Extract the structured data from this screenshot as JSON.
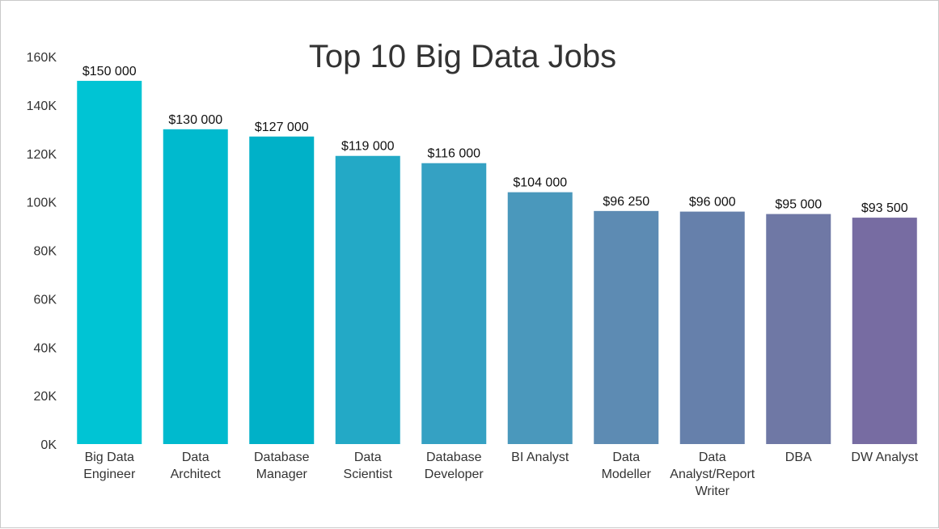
{
  "chart_data": {
    "type": "bar",
    "title": "Top 10 Big Data Jobs",
    "xlabel": "",
    "ylabel": "",
    "ylim": [
      0,
      160000
    ],
    "grid": false,
    "legend": "none",
    "yticks": [
      0,
      20000,
      40000,
      60000,
      80000,
      100000,
      120000,
      140000,
      160000
    ],
    "ytick_labels": [
      "0K",
      "20K",
      "40K",
      "60K",
      "80K",
      "100K",
      "120K",
      "140K",
      "160K"
    ],
    "categories": [
      [
        "Big Data",
        "Engineer"
      ],
      [
        "Data",
        "Architect"
      ],
      [
        "Database",
        "Manager"
      ],
      [
        "Data",
        "Scientist"
      ],
      [
        "Database",
        "Developer"
      ],
      [
        "BI Analyst"
      ],
      [
        "Data",
        "Modeller"
      ],
      [
        "Data",
        "Analyst/Report",
        "Writer"
      ],
      [
        "DBA"
      ],
      [
        "DW Analyst"
      ]
    ],
    "values": [
      150000,
      130000,
      127000,
      119000,
      116000,
      104000,
      96250,
      96000,
      95000,
      93500
    ],
    "value_labels": [
      "$150 000",
      "$130 000",
      "$127 000",
      "$119 000",
      "$116 000",
      "$104 000",
      "$96 250",
      "$96 000",
      "$95 000",
      "$93 500"
    ],
    "bar_colors": [
      "#00c4d4",
      "#00bace",
      "#00b1c8",
      "#23a9c6",
      "#35a1c3",
      "#4a98bc",
      "#5d8bb3",
      "#6680ab",
      "#6f78a5",
      "#776ca2"
    ]
  }
}
